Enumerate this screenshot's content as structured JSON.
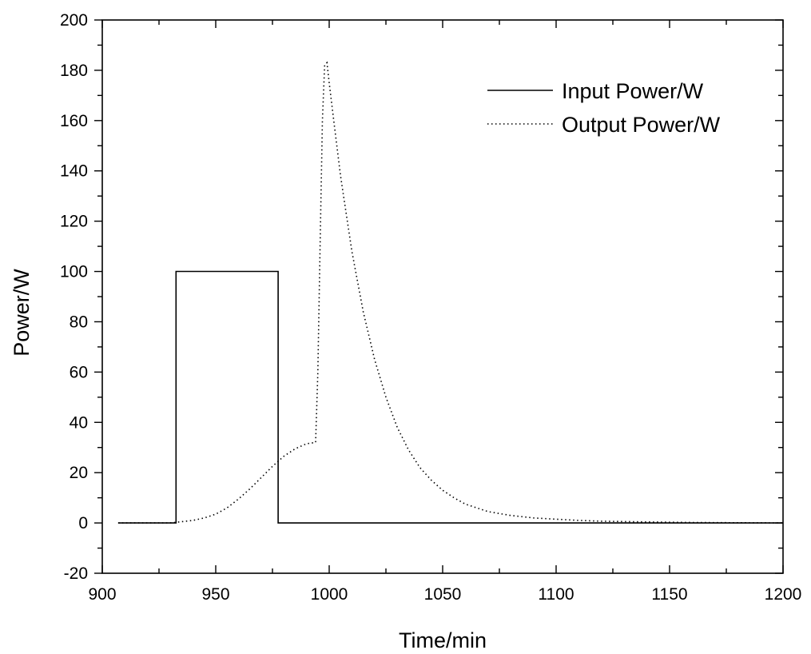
{
  "chart_data": {
    "type": "line",
    "xlabel": "Time/min",
    "ylabel": "Power/W",
    "xlim": [
      900,
      1200
    ],
    "ylim": [
      -20,
      200
    ],
    "x_ticks": [
      900,
      950,
      1000,
      1050,
      1100,
      1150,
      1200
    ],
    "x_tick_labels": [
      "900",
      "950",
      "1000",
      "1050",
      "1100",
      "1150",
      "1200"
    ],
    "y_ticks": [
      -20,
      0,
      20,
      40,
      60,
      80,
      100,
      120,
      140,
      160,
      180,
      200
    ],
    "y_tick_labels": [
      "-20",
      "0",
      "20",
      "40",
      "60",
      "80",
      "100",
      "120",
      "140",
      "160",
      "180",
      "200"
    ],
    "legend_position": "top-right",
    "grid": false,
    "series": [
      {
        "name": "Input Power/W",
        "style": "solid",
        "x": [
          907,
          932.5,
          932.5,
          977.5,
          977.5,
          1200
        ],
        "y": [
          0,
          0,
          100,
          100,
          0,
          0
        ]
      },
      {
        "name": "Output Power/W",
        "style": "dotted",
        "x": [
          907,
          930,
          935,
          940,
          945,
          950,
          955,
          960,
          965,
          970,
          975,
          980,
          985,
          990,
          994,
          995,
          996,
          997,
          998,
          999,
          1000,
          1002,
          1005,
          1010,
          1015,
          1020,
          1025,
          1030,
          1035,
          1040,
          1045,
          1050,
          1055,
          1060,
          1065,
          1070,
          1080,
          1090,
          1100,
          1110,
          1120,
          1140,
          1160,
          1180,
          1200
        ],
        "y": [
          0,
          0,
          0.5,
          1,
          2,
          3.5,
          6,
          9.5,
          13.5,
          18,
          22.5,
          26.5,
          29.5,
          31.5,
          32,
          60,
          110,
          160,
          182,
          183,
          175,
          160,
          138,
          108,
          84,
          65,
          50,
          38,
          29,
          22,
          17,
          13,
          10,
          7.5,
          6,
          4.5,
          3,
          2,
          1.5,
          1,
          0.7,
          0.4,
          0.2,
          0.1,
          0
        ]
      }
    ]
  }
}
